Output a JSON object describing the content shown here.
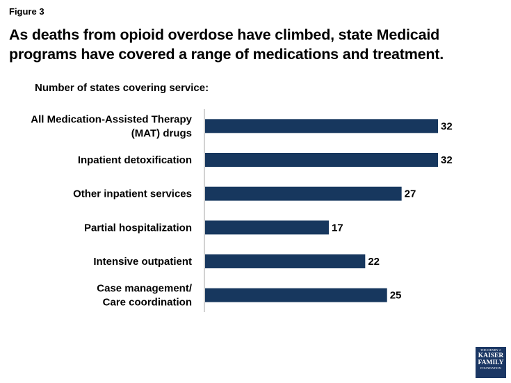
{
  "figure_label": "Figure 3",
  "title": "As deaths from opioid overdose have climbed, state Medicaid programs have covered a range of medications and treatment.",
  "subtitle": "Number of states covering service:",
  "logo": {
    "line1": "THE HENRY J.",
    "line2": "KAISER",
    "line3": "FAMILY",
    "line4": "FOUNDATION"
  },
  "colors": {
    "bar": "#17375e",
    "axis": "#a6a6a6"
  },
  "chart_data": {
    "type": "bar",
    "orientation": "horizontal",
    "categories": [
      [
        "All Medication-Assisted Therapy",
        "(MAT) drugs"
      ],
      [
        "Inpatient detoxification"
      ],
      [
        "Other inpatient services"
      ],
      [
        "Partial hospitalization"
      ],
      [
        "Intensive outpatient"
      ],
      [
        "Case management/",
        "Care coordination"
      ]
    ],
    "values": [
      32,
      32,
      27,
      17,
      22,
      25
    ],
    "xlim": [
      0,
      32
    ],
    "title": "",
    "xlabel": "",
    "ylabel": "",
    "grid": false,
    "legend": "none"
  }
}
